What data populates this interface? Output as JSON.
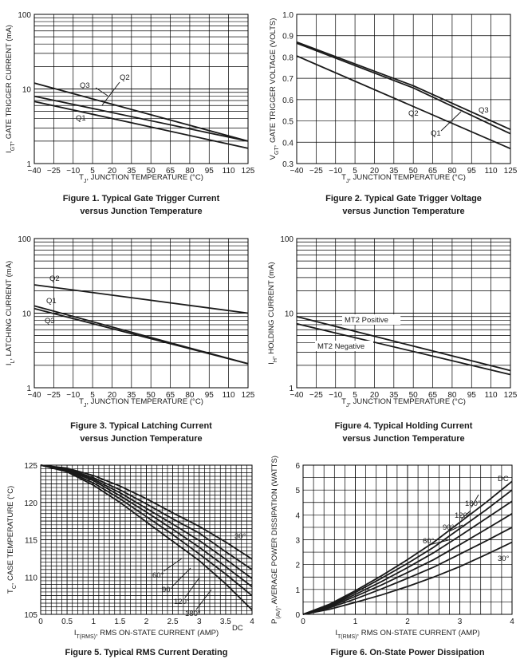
{
  "chart_data": [
    {
      "id": "fig1",
      "type": "line",
      "yscale": "log",
      "caption": [
        "Figure 1. Typical Gate Trigger Current",
        "versus Junction Temperature"
      ],
      "xlabel": "T_J, JUNCTION TEMPERATURE (°C)",
      "ylabel": "I_GT, GATE TRIGGER CURRENT (mA)",
      "xlim": [
        -40,
        125
      ],
      "ylim": [
        1,
        100
      ],
      "xticks": [
        "−40",
        "−25",
        "−10",
        "5",
        "20",
        "35",
        "50",
        "65",
        "80",
        "95",
        "110",
        "125"
      ],
      "yticks": [
        "1",
        "10",
        "100"
      ],
      "series": [
        {
          "name": "Q3",
          "x": [
            -40,
            125
          ],
          "y": [
            12.0,
            2.0
          ]
        },
        {
          "name": "Q2",
          "x": [
            -40,
            125
          ],
          "y": [
            8.0,
            2.0
          ]
        },
        {
          "name": "Q1",
          "x": [
            -40,
            125
          ],
          "y": [
            6.8,
            1.6
          ]
        }
      ],
      "annotations": [
        "Q3",
        "Q2",
        "Q1"
      ]
    },
    {
      "id": "fig2",
      "type": "line",
      "caption": [
        "Figure 2. Typical Gate Trigger Voltage",
        "versus Junction Temperature"
      ],
      "xlabel": "T_J, JUNCTION TEMPERATURE (°C)",
      "ylabel": "V_GT, GATE TRIGGER VOLTAGE (VOLTS)",
      "xlim": [
        -40,
        125
      ],
      "ylim": [
        0.3,
        1.0
      ],
      "xticks": [
        "−40",
        "−25",
        "−10",
        "5",
        "20",
        "35",
        "50",
        "65",
        "80",
        "95",
        "110",
        "125"
      ],
      "yticks": [
        "0.3",
        "0.4",
        "0.5",
        "0.6",
        "0.7",
        "0.8",
        "0.9",
        "1.0"
      ],
      "series": [
        {
          "name": "Q3",
          "x": [
            -40,
            50,
            125
          ],
          "y": [
            0.87,
            0.665,
            0.46
          ]
        },
        {
          "name": "Q2",
          "x": [
            -40,
            50,
            125
          ],
          "y": [
            0.865,
            0.655,
            0.44
          ]
        },
        {
          "name": "Q1",
          "x": [
            -40,
            125
          ],
          "y": [
            0.805,
            0.37
          ]
        }
      ],
      "annotations": [
        "Q3",
        "Q2",
        "Q1"
      ]
    },
    {
      "id": "fig3",
      "type": "line",
      "yscale": "log",
      "caption": [
        "Figure 3. Typical Latching Current",
        "versus Junction Temperature"
      ],
      "xlabel": "T_J, JUNCTION TEMPERATURE (°C)",
      "ylabel": "I_L, LATCHING CURRENT (mA)",
      "xlim": [
        -40,
        125
      ],
      "ylim": [
        1,
        100
      ],
      "xticks": [
        "−40",
        "−25",
        "−10",
        "5",
        "20",
        "35",
        "50",
        "65",
        "80",
        "95",
        "110",
        "125"
      ],
      "yticks": [
        "1",
        "10",
        "100"
      ],
      "series": [
        {
          "name": "Q2",
          "x": [
            -40,
            125
          ],
          "y": [
            24,
            10
          ]
        },
        {
          "name": "Q1",
          "x": [
            -40,
            125
          ],
          "y": [
            12.5,
            2.1
          ]
        },
        {
          "name": "Q3",
          "x": [
            -40,
            125
          ],
          "y": [
            11.5,
            2.1
          ]
        }
      ],
      "annotations": [
        "Q2",
        "Q1",
        "Q3"
      ]
    },
    {
      "id": "fig4",
      "type": "line",
      "yscale": "log",
      "caption": [
        "Figure 4. Typical Holding Current",
        "versus Junction Temperature"
      ],
      "xlabel": "T_J, JUNCTION TEMPERATURE (°C)",
      "ylabel": "I_H, HOLDING CURRENT (mA)",
      "xlim": [
        -40,
        125
      ],
      "ylim": [
        1,
        100
      ],
      "xticks": [
        "−40",
        "−25",
        "−10",
        "5",
        "20",
        "35",
        "50",
        "65",
        "80",
        "95",
        "110",
        "125"
      ],
      "yticks": [
        "1",
        "10",
        "100"
      ],
      "series": [
        {
          "name": "MT2 Positive",
          "x": [
            -40,
            125
          ],
          "y": [
            9.0,
            1.7
          ]
        },
        {
          "name": "MT2 Negative",
          "x": [
            -40,
            125
          ],
          "y": [
            7.2,
            1.5
          ]
        }
      ],
      "annotations": [
        "MT2 Positive",
        "MT2 Negative"
      ]
    },
    {
      "id": "fig5",
      "type": "line",
      "caption": [
        "Figure 5. Typical RMS Current Derating"
      ],
      "xlabel": "I_T(RMS), RMS ON-STATE CURRENT (AMP)",
      "ylabel": "T_C, CASE TEMPERATURE (°C)",
      "xlim": [
        0,
        4
      ],
      "ylim": [
        105,
        125
      ],
      "xticks": [
        "0",
        "0.5",
        "1",
        "1.5",
        "2",
        "2.5",
        "3",
        "3.5",
        "4"
      ],
      "yticks": [
        "105",
        "110",
        "115",
        "120",
        "125"
      ],
      "series": [
        {
          "name": "30°",
          "x": [
            0,
            0.5,
            1,
            1.5,
            2,
            2.5,
            3,
            3.5,
            4
          ],
          "y": [
            125,
            124.6,
            123.6,
            122.2,
            120.5,
            118.6,
            116.8,
            114.7,
            112.4
          ]
        },
        {
          "name": "60°",
          "x": [
            0,
            0.5,
            1,
            1.5,
            2,
            2.5,
            3,
            3.5,
            4
          ],
          "y": [
            125,
            124.5,
            123.3,
            121.7,
            119.8,
            117.8,
            115.9,
            113.4,
            111.0
          ]
        },
        {
          "name": "90°",
          "x": [
            0,
            0.5,
            1,
            1.5,
            2,
            2.5,
            3,
            3.5,
            4
          ],
          "y": [
            125,
            124.4,
            123.1,
            121.3,
            119.2,
            117.1,
            114.9,
            112.4,
            109.8
          ]
        },
        {
          "name": "120°",
          "x": [
            0,
            0.5,
            1,
            1.5,
            2,
            2.5,
            3,
            3.5,
            4
          ],
          "y": [
            125,
            124.3,
            122.9,
            120.9,
            118.7,
            116.4,
            114.0,
            111.4,
            108.7
          ]
        },
        {
          "name": "180°",
          "x": [
            0,
            0.5,
            1,
            1.5,
            2,
            2.5,
            3,
            3.5,
            4
          ],
          "y": [
            125,
            124.2,
            122.6,
            120.5,
            118.1,
            115.7,
            113.1,
            110.4,
            107.5
          ]
        },
        {
          "name": "DC",
          "x": [
            0,
            0.5,
            1,
            1.5,
            2,
            2.5,
            3,
            3.5,
            4
          ],
          "y": [
            125,
            124.1,
            122.3,
            120.0,
            117.4,
            114.8,
            112.2,
            109.1,
            105.6
          ]
        }
      ],
      "annotations": [
        "30°",
        "60°",
        "90°",
        "120°",
        "180°",
        "DC"
      ]
    },
    {
      "id": "fig6",
      "type": "line",
      "caption": [
        "Figure 6. On-State Power Dissipation"
      ],
      "xlabel": "I_T(RMS), RMS ON-STATE CURRENT (AMP)",
      "ylabel": "P_(AV), AVERAGE POWER DISSIPATION (WATTS)",
      "xlim": [
        0,
        4
      ],
      "ylim": [
        0,
        6
      ],
      "xticks": [
        "0",
        "1",
        "2",
        "3",
        "4"
      ],
      "yticks": [
        "0",
        "1",
        "2",
        "3",
        "4",
        "5",
        "6"
      ],
      "series": [
        {
          "name": "DC",
          "x": [
            0,
            0.5,
            1,
            1.5,
            2,
            2.5,
            3,
            3.5,
            4
          ],
          "y": [
            0,
            0.4,
            0.95,
            1.55,
            2.2,
            2.9,
            3.7,
            4.5,
            5.35
          ]
        },
        {
          "name": "180°",
          "x": [
            0,
            0.5,
            1,
            1.5,
            2,
            2.5,
            3,
            3.5,
            4
          ],
          "y": [
            0,
            0.37,
            0.88,
            1.45,
            2.05,
            2.7,
            3.45,
            4.2,
            5.0
          ]
        },
        {
          "name": "120°",
          "x": [
            0,
            0.5,
            1,
            1.5,
            2,
            2.5,
            3,
            3.5,
            4
          ],
          "y": [
            0,
            0.34,
            0.8,
            1.32,
            1.88,
            2.48,
            3.15,
            3.85,
            4.55
          ]
        },
        {
          "name": "90°",
          "x": [
            0,
            0.5,
            1,
            1.5,
            2,
            2.5,
            3,
            3.5,
            4
          ],
          "y": [
            0,
            0.3,
            0.72,
            1.18,
            1.68,
            2.2,
            2.8,
            3.42,
            4.05
          ]
        },
        {
          "name": "60°",
          "x": [
            0,
            0.5,
            1,
            1.5,
            2,
            2.5,
            3,
            3.5,
            4
          ],
          "y": [
            0,
            0.26,
            0.62,
            1.02,
            1.45,
            1.9,
            2.42,
            2.95,
            3.5
          ]
        },
        {
          "name": "30°",
          "x": [
            0,
            0.5,
            1,
            1.5,
            2,
            2.5,
            3,
            3.5,
            4
          ],
          "y": [
            0,
            0.2,
            0.48,
            0.78,
            1.12,
            1.5,
            1.92,
            2.4,
            2.9
          ]
        }
      ],
      "annotations": [
        "DC",
        "180°",
        "120°",
        "90°",
        "60°",
        "30°"
      ]
    }
  ]
}
